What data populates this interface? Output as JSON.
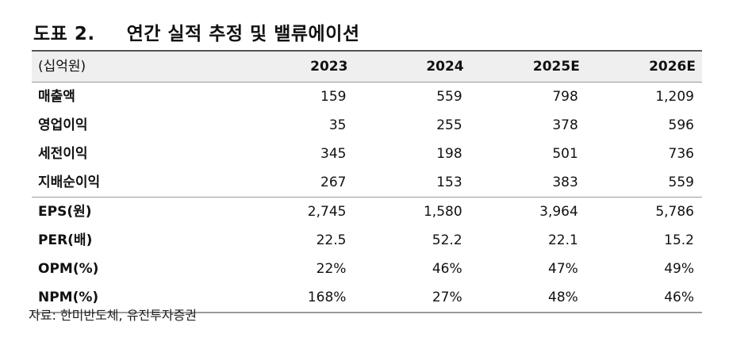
{
  "title": {
    "label": "도표 2.",
    "text": "연간 실적 추정 및 밸류에이션"
  },
  "table": {
    "unit": "(십억원)",
    "columns": [
      "2023",
      "2024",
      "2025E",
      "2026E"
    ],
    "rows_group1": [
      {
        "label": "매출액",
        "values": [
          "159",
          "559",
          "798",
          "1,209"
        ]
      },
      {
        "label": "영업이익",
        "values": [
          "35",
          "255",
          "378",
          "596"
        ]
      },
      {
        "label": "세전이익",
        "values": [
          "345",
          "198",
          "501",
          "736"
        ]
      },
      {
        "label": "지배순이익",
        "values": [
          "267",
          "153",
          "383",
          "559"
        ]
      }
    ],
    "rows_group2": [
      {
        "label": "EPS(원)",
        "values": [
          "2,745",
          "1,580",
          "3,964",
          "5,786"
        ]
      },
      {
        "label": "PER(배)",
        "values": [
          "22.5",
          "52.2",
          "22.1",
          "15.2"
        ]
      },
      {
        "label": "OPM(%)",
        "values": [
          "22%",
          "46%",
          "47%",
          "49%"
        ]
      },
      {
        "label": "NPM(%)",
        "values": [
          "168%",
          "27%",
          "48%",
          "46%"
        ]
      }
    ]
  },
  "source": "자료: 한미반도체, 유진투자증권"
}
